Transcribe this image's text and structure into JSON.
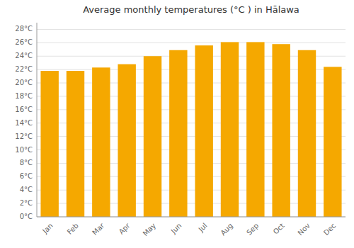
{
  "chart_data": {
    "type": "bar",
    "title": "Average monthly temperatures (°C ) in Hālawa",
    "categories": [
      "Jan",
      "Feb",
      "Mar",
      "Apr",
      "May",
      "Jun",
      "Jul",
      "Aug",
      "Sep",
      "Oct",
      "Nov",
      "Dec"
    ],
    "values": [
      21.8,
      21.8,
      22.3,
      22.8,
      24.0,
      24.9,
      25.6,
      26.1,
      26.1,
      25.8,
      24.9,
      22.4
    ],
    "color": "#F5A800",
    "ylim": [
      0,
      29
    ],
    "yticks": [
      {
        "value": 0,
        "label": "0°C"
      },
      {
        "value": 2,
        "label": "2°C"
      },
      {
        "value": 4,
        "label": "4°C"
      },
      {
        "value": 6,
        "label": "6°C"
      },
      {
        "value": 8,
        "label": "8°C"
      },
      {
        "value": 10,
        "label": "10°C"
      },
      {
        "value": 12,
        "label": "12°C"
      },
      {
        "value": 14,
        "label": "14°C"
      },
      {
        "value": 16,
        "label": "16°C"
      },
      {
        "value": 18,
        "label": "18°C"
      },
      {
        "value": 20,
        "label": "20°C"
      },
      {
        "value": 22,
        "label": "22°C"
      },
      {
        "value": 24,
        "label": "24°C"
      },
      {
        "value": 26,
        "label": "26°C"
      },
      {
        "value": 28,
        "label": "28°C"
      }
    ],
    "grid": true
  }
}
